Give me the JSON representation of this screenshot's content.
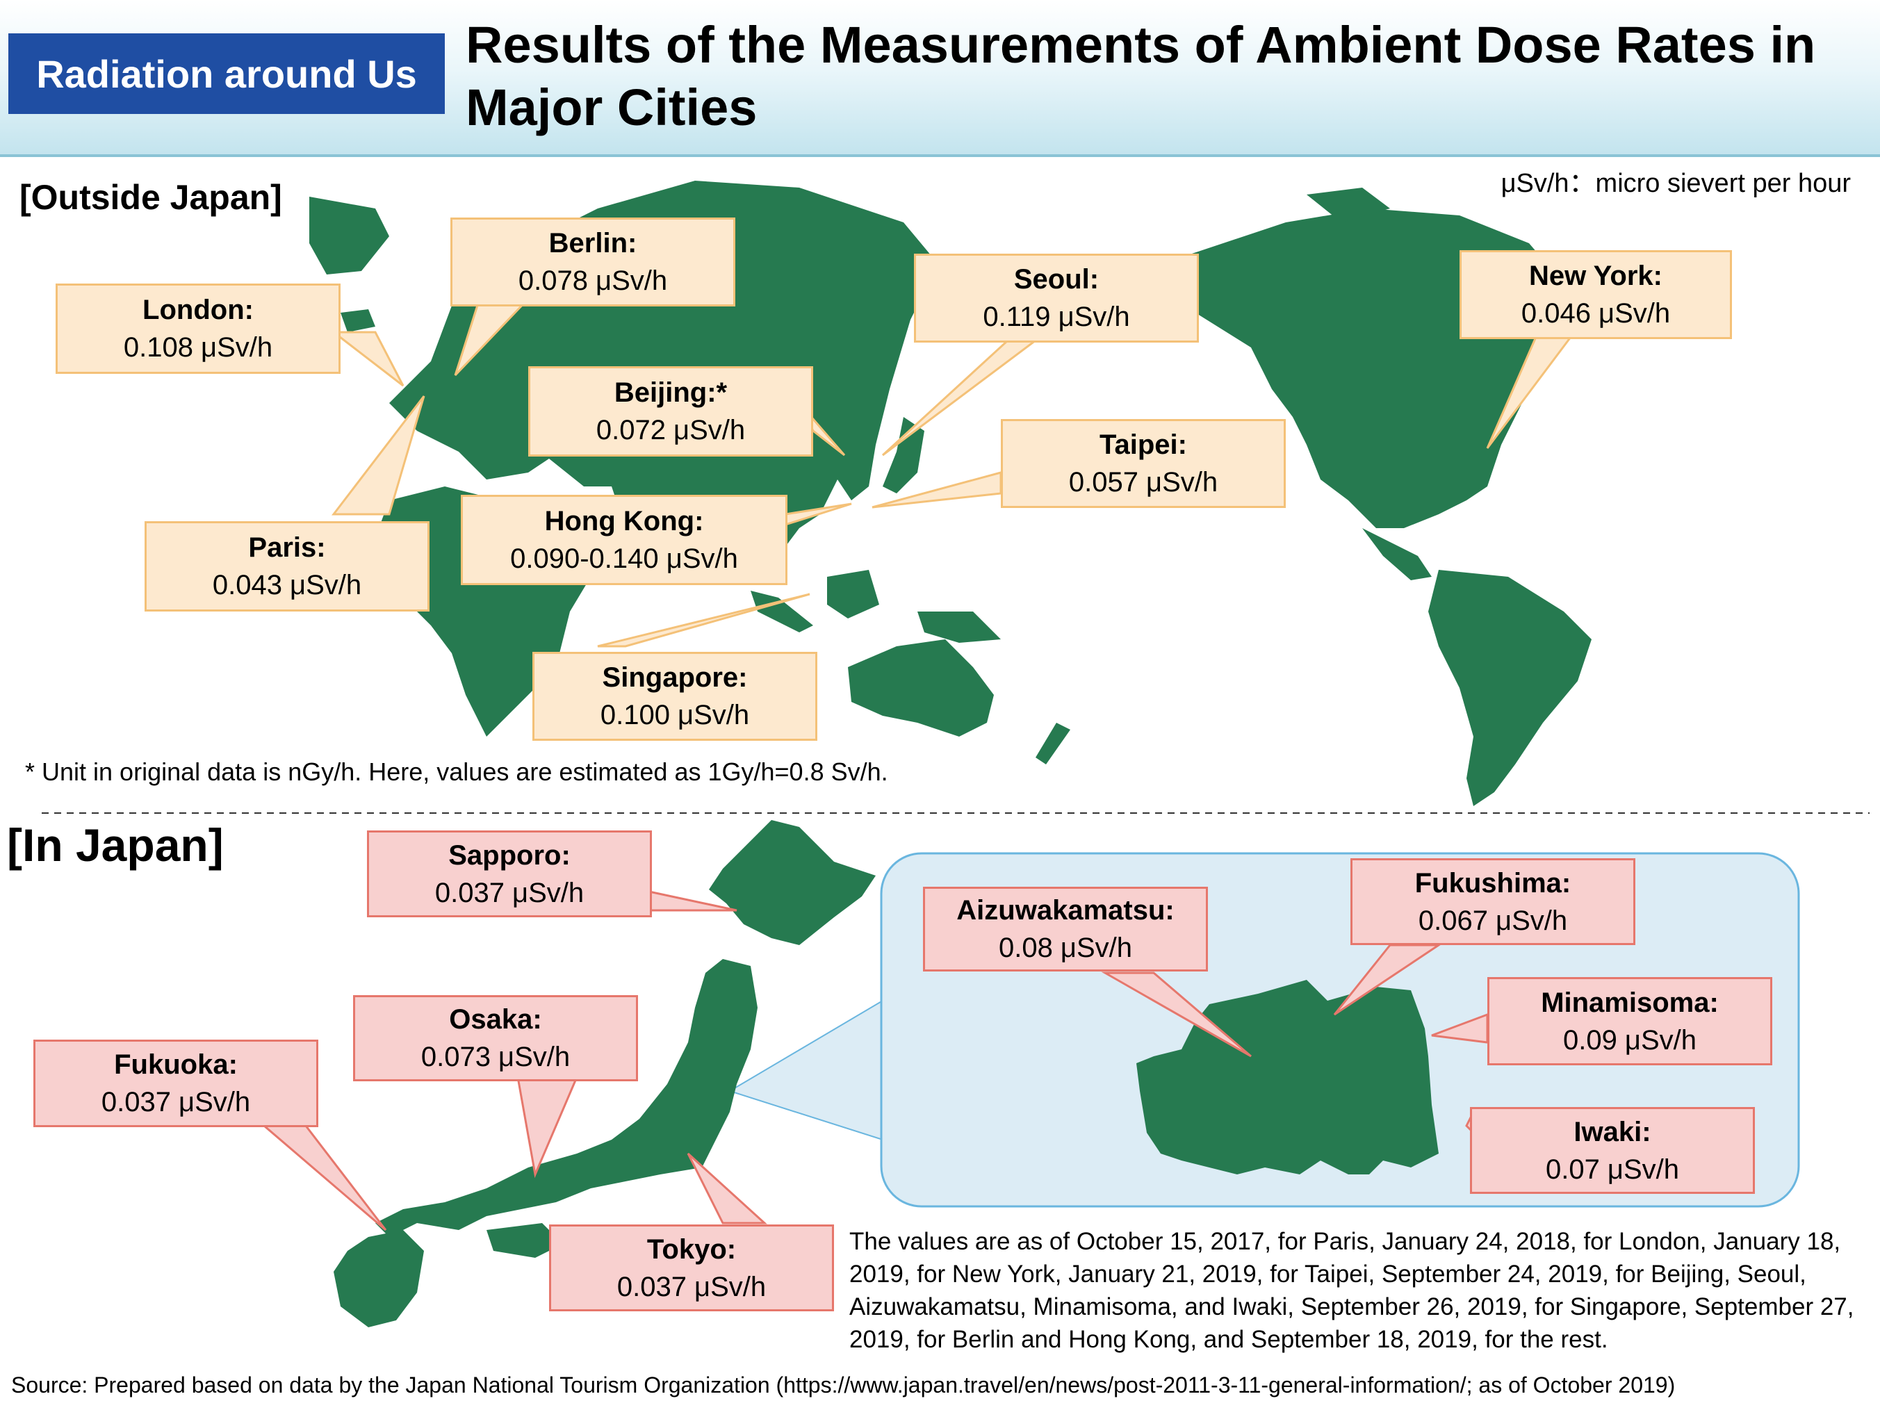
{
  "header": {
    "section_tag": "Radiation around Us",
    "title": "Results of the Measurements of Ambient Dose Rates in Major Cities"
  },
  "unit_note": "μSv/h：micro sievert per hour",
  "outside_japan": {
    "heading": "[Outside Japan]",
    "cities": [
      {
        "name": "London:",
        "value": "0.108 μSv/h"
      },
      {
        "name": "Berlin:",
        "value": "0.078 μSv/h"
      },
      {
        "name": "Paris:",
        "value": "0.043 μSv/h"
      },
      {
        "name": "Beijing:*",
        "value": "0.072 μSv/h"
      },
      {
        "name": "Hong Kong:",
        "value": "0.090-0.140 μSv/h"
      },
      {
        "name": "Singapore:",
        "value": "0.100 μSv/h"
      },
      {
        "name": "Seoul:",
        "value": "0.119 μSv/h"
      },
      {
        "name": "Taipei:",
        "value": "0.057 μSv/h"
      },
      {
        "name": "New York:",
        "value": "0.046 μSv/h"
      }
    ],
    "footnote": "* Unit in original data is nGy/h. Here, values are estimated as 1Gy/h=0.8 Sv/h."
  },
  "in_japan": {
    "heading": "[In Japan]",
    "cities": [
      {
        "name": "Sapporo:",
        "value": "0.037 μSv/h"
      },
      {
        "name": "Osaka:",
        "value": "0.073 μSv/h"
      },
      {
        "name": "Fukuoka:",
        "value": "0.037 μSv/h"
      },
      {
        "name": "Tokyo:",
        "value": "0.037 μSv/h"
      }
    ],
    "fukushima_inset": [
      {
        "name": "Aizuwakamatsu:",
        "value": "0.08 μSv/h"
      },
      {
        "name": "Fukushima:",
        "value": "0.067 μSv/h"
      },
      {
        "name": "Minamisoma:",
        "value": "0.09 μSv/h"
      },
      {
        "name": "Iwaki:",
        "value": "0.07 μSv/h"
      }
    ]
  },
  "dates_note": "The values are as of October 15, 2017, for Paris, January 24, 2018, for London, January 18, 2019, for New York, January 21, 2019, for Taipei, September 24, 2019, for Beijing, Seoul, Aizuwakamatsu, Minamisoma, and Iwaki, September 26, 2019, for Singapore, September 27, 2019, for Berlin and Hong Kong, and September 18, 2019, for the rest.",
  "source": "Source: Prepared based on data by the Japan National Tourism Organization (https://www.japan.travel/en/news/post-2011-3-11-general-information/; as of October 2019)",
  "colors": {
    "land": "#267a50",
    "header_tag": "#1f4ea3",
    "world_callout": "#fde9cf",
    "japan_callout": "#f8d0cf",
    "inset_bg": "#dcecf5"
  }
}
